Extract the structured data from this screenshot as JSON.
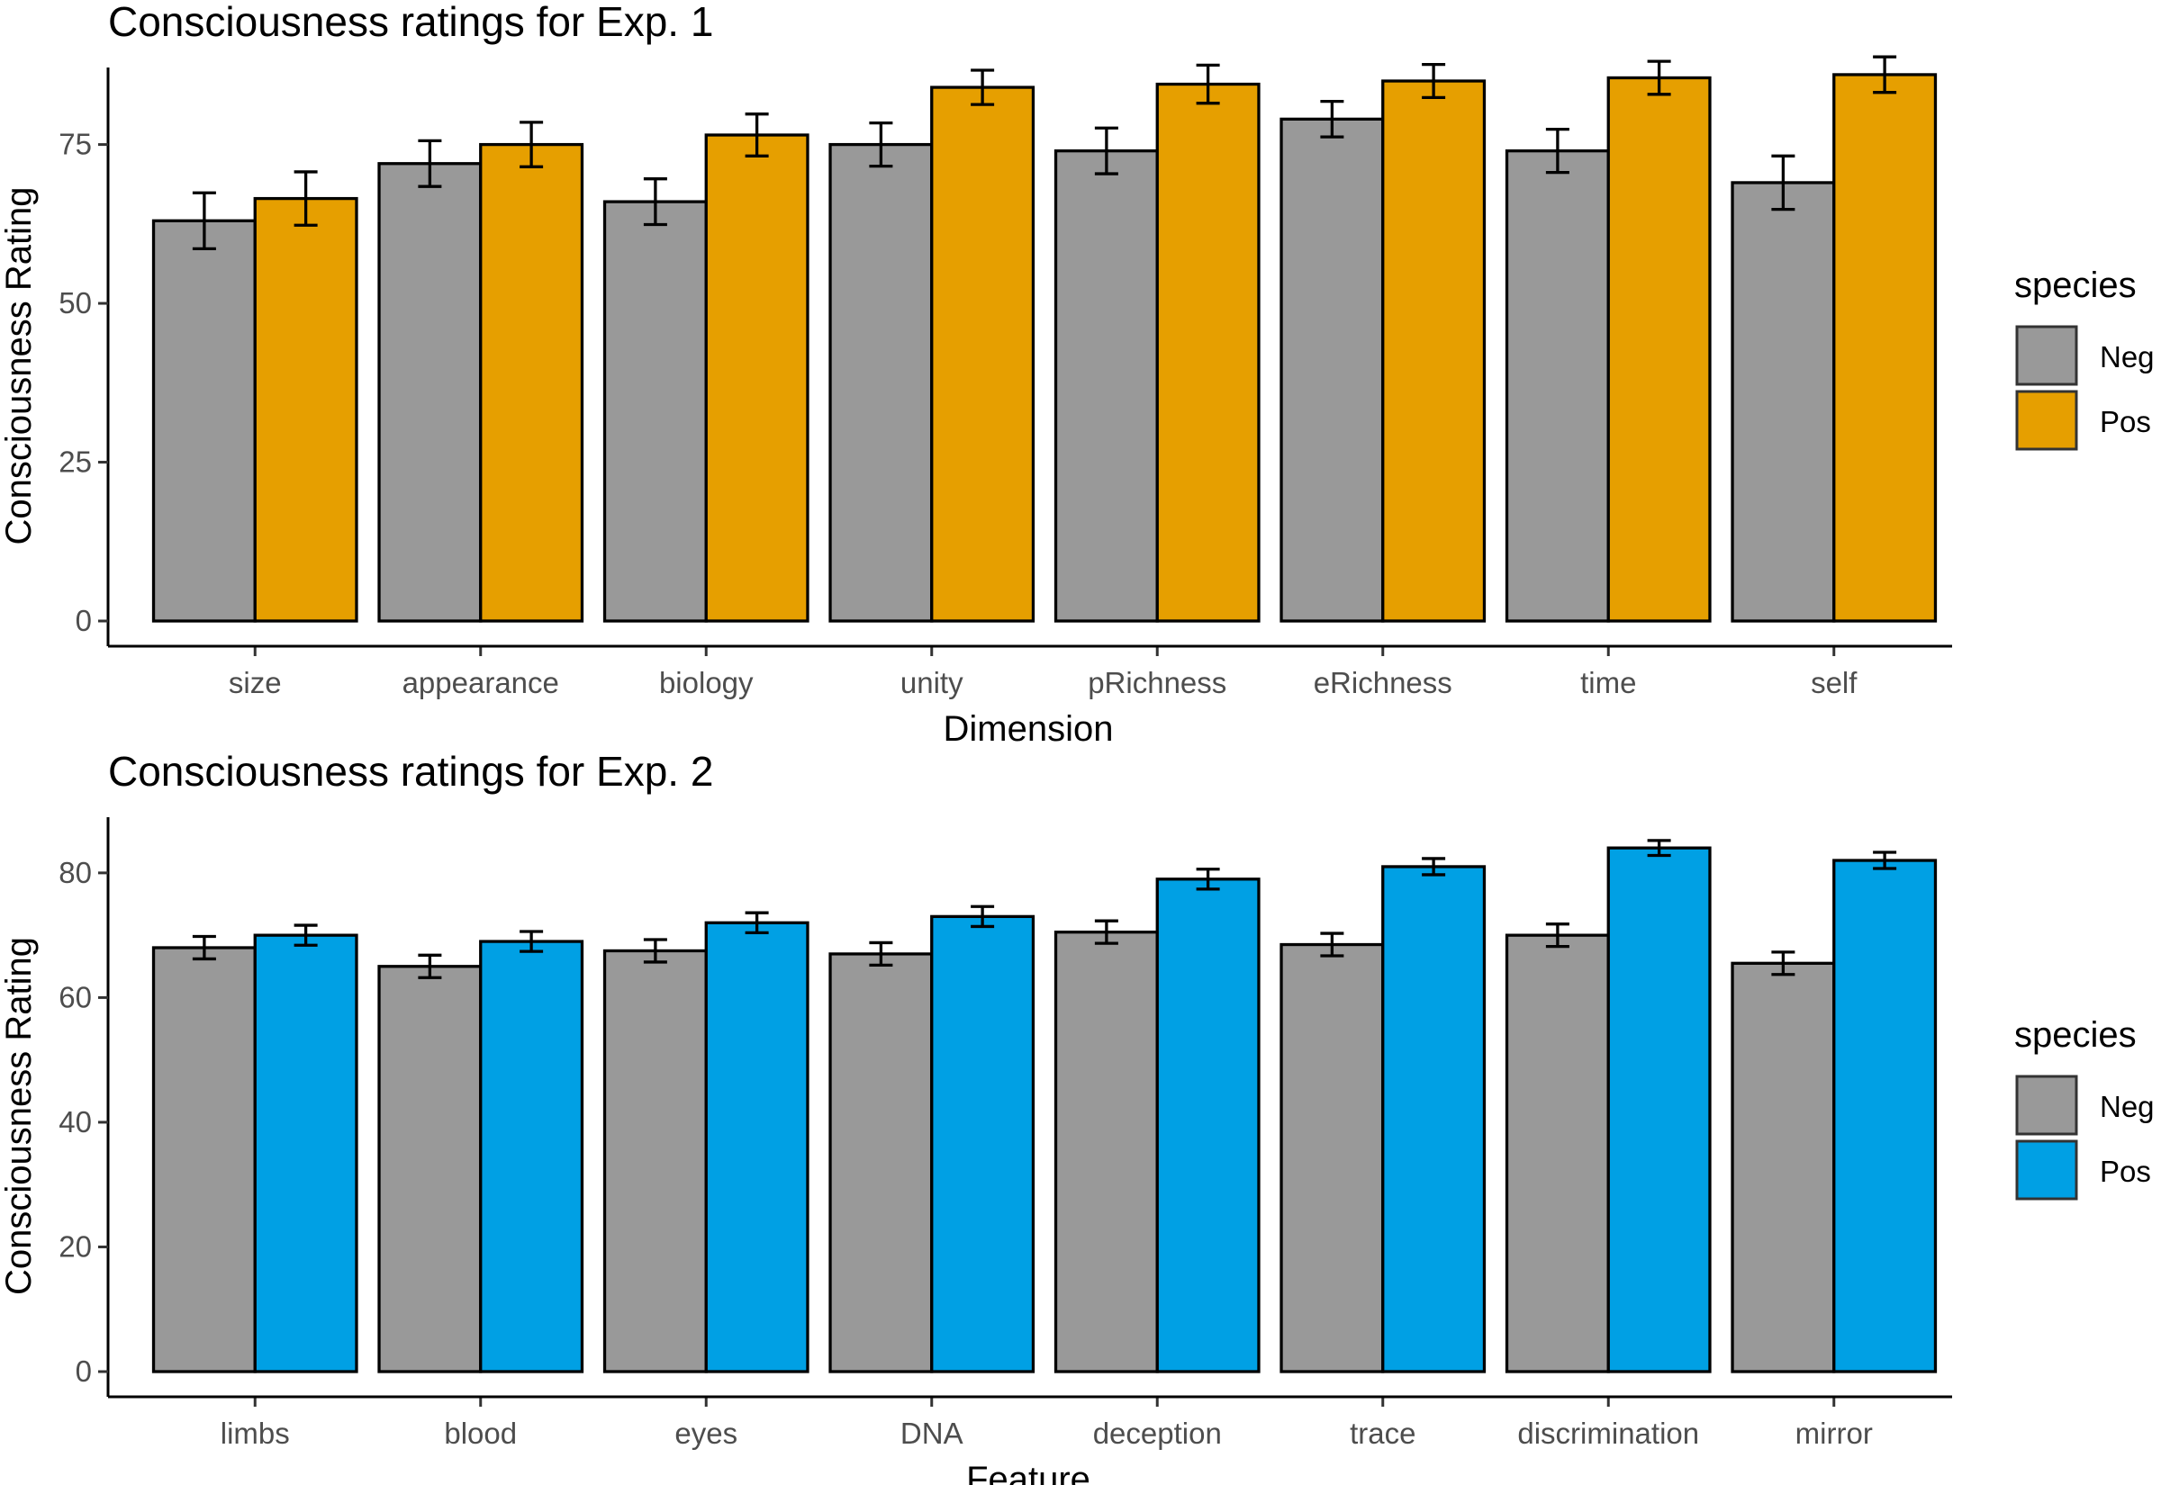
{
  "chart_data": [
    {
      "type": "bar",
      "title": "Consciousness ratings for Exp. 1",
      "xlabel": "Dimension",
      "ylabel": "Consciousness Rating",
      "categories": [
        "size",
        "appearance",
        "biology",
        "unity",
        "pRichness",
        "eRichness",
        "time",
        "self"
      ],
      "ylim": [
        0,
        90
      ],
      "yticks": [
        0,
        25,
        50,
        75
      ],
      "grid": false,
      "legend": {
        "title": "species",
        "position": "right"
      },
      "series": [
        {
          "name": "Neg",
          "color": "#999999",
          "values": [
            63,
            72,
            66,
            75,
            74,
            79,
            74,
            69
          ],
          "errors": [
            4.4,
            3.6,
            3.6,
            3.4,
            3.6,
            2.8,
            3.4,
            4.2
          ]
        },
        {
          "name": "Pos",
          "color": "#E69F00",
          "values": [
            66.5,
            75,
            76.5,
            84,
            84.5,
            85,
            85.5,
            86
          ],
          "errors": [
            4.2,
            3.5,
            3.3,
            2.7,
            3.0,
            2.6,
            2.6,
            2.8
          ]
        }
      ]
    },
    {
      "type": "bar",
      "title": "Consciousness ratings for Exp. 2",
      "xlabel": "Feature",
      "ylabel": "Consciousness Rating",
      "categories": [
        "limbs",
        "blood",
        "eyes",
        "DNA",
        "deception",
        "trace",
        "discrimination",
        "mirror"
      ],
      "ylim": [
        0,
        88
      ],
      "yticks": [
        0,
        20,
        40,
        60,
        80
      ],
      "grid": false,
      "legend": {
        "title": "species",
        "position": "right"
      },
      "series": [
        {
          "name": "Neg",
          "color": "#999999",
          "values": [
            68,
            65,
            67.5,
            67,
            70.5,
            68.5,
            70,
            65.5
          ],
          "errors": [
            1.8,
            1.8,
            1.8,
            1.8,
            1.8,
            1.8,
            1.8,
            1.8
          ]
        },
        {
          "name": "Pos",
          "color": "#00A0E4",
          "values": [
            70,
            69,
            72,
            73,
            79,
            81,
            84,
            82
          ],
          "errors": [
            1.6,
            1.6,
            1.6,
            1.6,
            1.6,
            1.3,
            1.2,
            1.3
          ]
        }
      ]
    }
  ]
}
